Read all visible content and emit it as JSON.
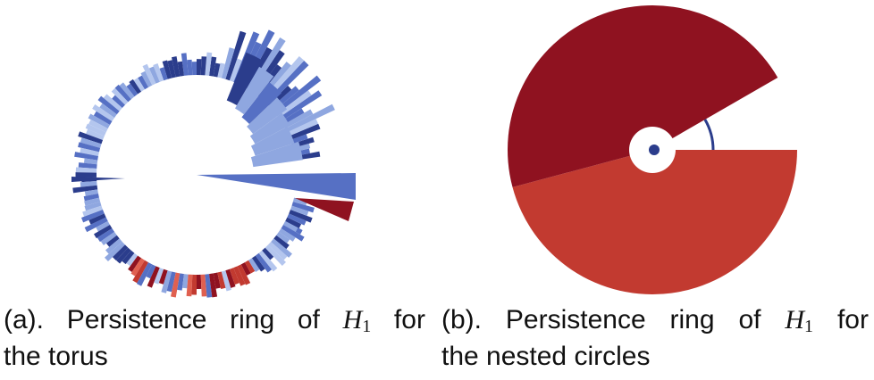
{
  "colors": {
    "dark_blue": "#2b3d8c",
    "mid_blue": "#5670c4",
    "light_blue": "#8fa7e0",
    "pale_blue": "#b4c6ee",
    "dark_red": "#8f1220",
    "red": "#c23a30",
    "light_red": "#e06050"
  },
  "panel_a": {
    "caption_line1": [
      "(a).",
      "Persistence",
      "ring",
      "of"
    ],
    "caption_var": "H",
    "caption_sub": "1",
    "caption_for": "for",
    "caption_line2": "the torus"
  },
  "panel_b": {
    "caption_line1": [
      "(b).",
      "Persistence",
      "ring",
      "of"
    ],
    "caption_var": "H",
    "caption_sub": "1",
    "caption_for": "for",
    "caption_line2": "the nested circles"
  }
}
